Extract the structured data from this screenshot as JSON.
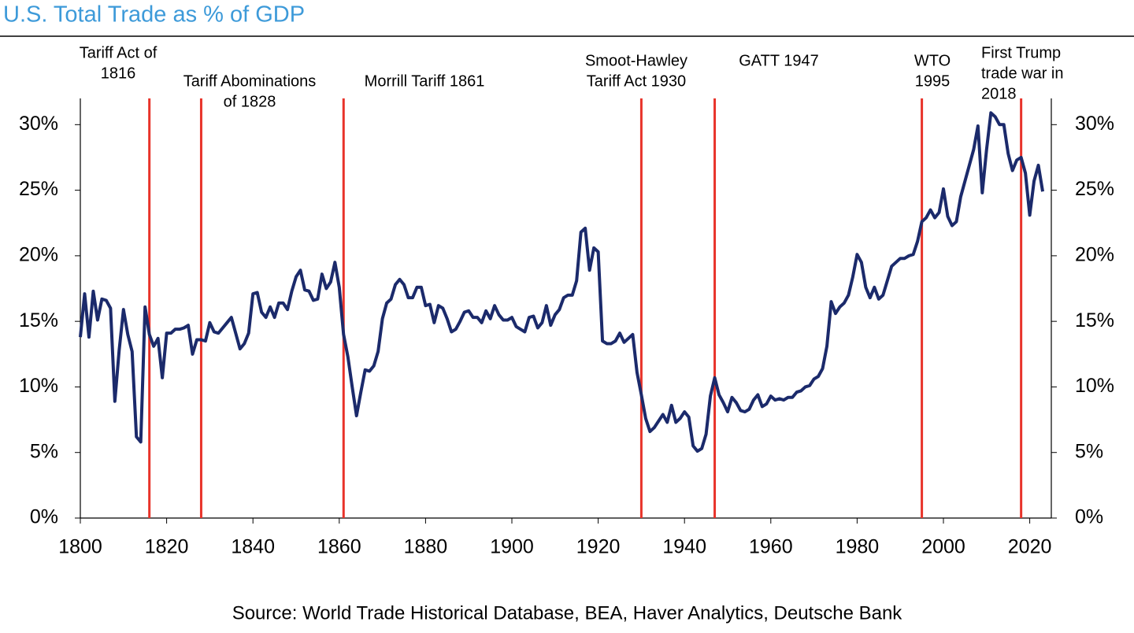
{
  "chart_data": {
    "type": "line",
    "title": "U.S. Total Trade as % of GDP",
    "source": "Source: World Trade Historical Database, BEA, Haver Analytics, Deutsche Bank",
    "xlim": [
      1800,
      2025
    ],
    "xticks": [
      1800,
      1820,
      1840,
      1860,
      1880,
      1900,
      1920,
      1940,
      1960,
      1980,
      2000,
      2020
    ],
    "ylim": [
      0,
      32
    ],
    "yticks": [
      {
        "value": 0,
        "label": "0%"
      },
      {
        "value": 5,
        "label": "5%"
      },
      {
        "value": 10,
        "label": "10%"
      },
      {
        "value": 15,
        "label": "15%"
      },
      {
        "value": 20,
        "label": "20%"
      },
      {
        "value": 25,
        "label": "25%"
      },
      {
        "value": 30,
        "label": "30%"
      }
    ],
    "grid": false,
    "x": [
      1800,
      1801,
      1802,
      1803,
      1804,
      1805,
      1806,
      1807,
      1808,
      1809,
      1810,
      1811,
      1812,
      1813,
      1814,
      1815,
      1816,
      1817,
      1818,
      1819,
      1820,
      1821,
      1822,
      1823,
      1824,
      1825,
      1826,
      1827,
      1828,
      1829,
      1830,
      1831,
      1832,
      1833,
      1834,
      1835,
      1836,
      1837,
      1838,
      1839,
      1840,
      1841,
      1842,
      1843,
      1844,
      1845,
      1846,
      1847,
      1848,
      1849,
      1850,
      1851,
      1852,
      1853,
      1854,
      1855,
      1856,
      1857,
      1858,
      1859,
      1860,
      1861,
      1862,
      1863,
      1864,
      1865,
      1866,
      1867,
      1868,
      1869,
      1870,
      1871,
      1872,
      1873,
      1874,
      1875,
      1876,
      1877,
      1878,
      1879,
      1880,
      1881,
      1882,
      1883,
      1884,
      1885,
      1886,
      1887,
      1888,
      1889,
      1890,
      1891,
      1892,
      1893,
      1894,
      1895,
      1896,
      1897,
      1898,
      1899,
      1900,
      1901,
      1902,
      1903,
      1904,
      1905,
      1906,
      1907,
      1908,
      1909,
      1910,
      1911,
      1912,
      1913,
      1914,
      1915,
      1916,
      1917,
      1918,
      1919,
      1920,
      1921,
      1922,
      1923,
      1924,
      1925,
      1926,
      1927,
      1928,
      1929,
      1930,
      1931,
      1932,
      1933,
      1934,
      1935,
      1936,
      1937,
      1938,
      1939,
      1940,
      1941,
      1942,
      1943,
      1944,
      1945,
      1946,
      1947,
      1948,
      1949,
      1950,
      1951,
      1952,
      1953,
      1954,
      1955,
      1956,
      1957,
      1958,
      1959,
      1960,
      1961,
      1962,
      1963,
      1964,
      1965,
      1966,
      1967,
      1968,
      1969,
      1970,
      1971,
      1972,
      1973,
      1974,
      1975,
      1976,
      1977,
      1978,
      1979,
      1980,
      1981,
      1982,
      1983,
      1984,
      1985,
      1986,
      1987,
      1988,
      1989,
      1990,
      1991,
      1992,
      1993,
      1994,
      1995,
      1996,
      1997,
      1998,
      1999,
      2000,
      2001,
      2002,
      2003,
      2004,
      2005,
      2006,
      2007,
      2008,
      2009,
      2010,
      2011,
      2012,
      2013,
      2014,
      2015,
      2016,
      2017,
      2018,
      2019,
      2020,
      2021,
      2022,
      2023
    ],
    "series": [
      {
        "name": "Total Trade % of GDP",
        "color": "#1b2a6b",
        "values": [
          13.8,
          17.1,
          13.8,
          17.3,
          15.1,
          16.7,
          16.6,
          16.0,
          8.9,
          12.8,
          15.9,
          14.0,
          12.7,
          6.2,
          5.8,
          16.1,
          14.0,
          13.1,
          13.7,
          10.7,
          14.1,
          14.1,
          14.4,
          14.4,
          14.5,
          14.7,
          12.5,
          13.6,
          13.6,
          13.5,
          14.9,
          14.2,
          14.1,
          14.5,
          14.9,
          15.3,
          14.1,
          12.9,
          13.3,
          14.1,
          17.1,
          17.2,
          15.7,
          15.3,
          16.1,
          15.3,
          16.4,
          16.4,
          15.9,
          17.3,
          18.4,
          18.9,
          17.4,
          17.3,
          16.6,
          16.7,
          18.6,
          17.5,
          18.0,
          19.5,
          17.6,
          14.0,
          12.3,
          10.0,
          7.8,
          9.6,
          11.3,
          11.2,
          11.6,
          12.7,
          15.2,
          16.4,
          16.7,
          17.8,
          18.2,
          17.8,
          16.8,
          16.8,
          17.6,
          17.6,
          16.2,
          16.3,
          14.9,
          16.2,
          16.0,
          15.2,
          14.2,
          14.4,
          15.0,
          15.7,
          15.8,
          15.3,
          15.3,
          14.9,
          15.8,
          15.2,
          16.2,
          15.5,
          15.1,
          15.1,
          15.3,
          14.6,
          14.4,
          14.2,
          15.3,
          15.4,
          14.5,
          14.9,
          16.2,
          14.7,
          15.5,
          15.9,
          16.8,
          17.0,
          17.0,
          18.1,
          21.8,
          22.1,
          18.9,
          20.6,
          20.3,
          13.5,
          13.3,
          13.3,
          13.5,
          14.1,
          13.4,
          13.7,
          14.0,
          11.1,
          9.4,
          7.6,
          6.6,
          6.9,
          7.4,
          7.9,
          7.3,
          8.6,
          7.3,
          7.6,
          8.1,
          7.7,
          5.5,
          5.1,
          5.3,
          6.4,
          9.3,
          10.7,
          9.4,
          8.8,
          8.1,
          9.2,
          8.8,
          8.2,
          8.1,
          8.3,
          9.0,
          9.4,
          8.5,
          8.7,
          9.3,
          9.0,
          9.1,
          9.0,
          9.2,
          9.2,
          9.6,
          9.7,
          10.0,
          10.1,
          10.6,
          10.8,
          11.4,
          13.1,
          16.5,
          15.6,
          16.1,
          16.4,
          17.0,
          18.4,
          20.1,
          19.5,
          17.6,
          16.8,
          17.6,
          16.7,
          17.0,
          18.1,
          19.2,
          19.5,
          19.8,
          19.8,
          20.0,
          20.1,
          21.1,
          22.6,
          22.9,
          23.5,
          22.9,
          23.3,
          25.1,
          23.0,
          22.3,
          22.6,
          24.5,
          25.7,
          26.9,
          28.1,
          29.9,
          24.8,
          28.1,
          30.9,
          30.6,
          30.0,
          30.0,
          27.8,
          26.5,
          27.3,
          27.5,
          26.3,
          23.1,
          25.7,
          26.9,
          24.9
        ]
      }
    ],
    "annotation_color": "#e8332a",
    "annotations": [
      {
        "x": 1816,
        "lines": [
          "Tariff Act of",
          "1816"
        ]
      },
      {
        "x": 1828,
        "lines": [
          "Tariff Abominations",
          "of 1828"
        ]
      },
      {
        "x": 1861,
        "lines": [
          "Morrill Tariff 1861"
        ]
      },
      {
        "x": 1930,
        "lines": [
          "Smoot-Hawley",
          "Tariff Act 1930"
        ]
      },
      {
        "x": 1947,
        "lines": [
          "GATT 1947"
        ]
      },
      {
        "x": 1995,
        "lines": [
          "WTO",
          "1995"
        ]
      },
      {
        "x": 2018,
        "lines": [
          "First Trump",
          "trade war in",
          "2018"
        ]
      }
    ]
  }
}
